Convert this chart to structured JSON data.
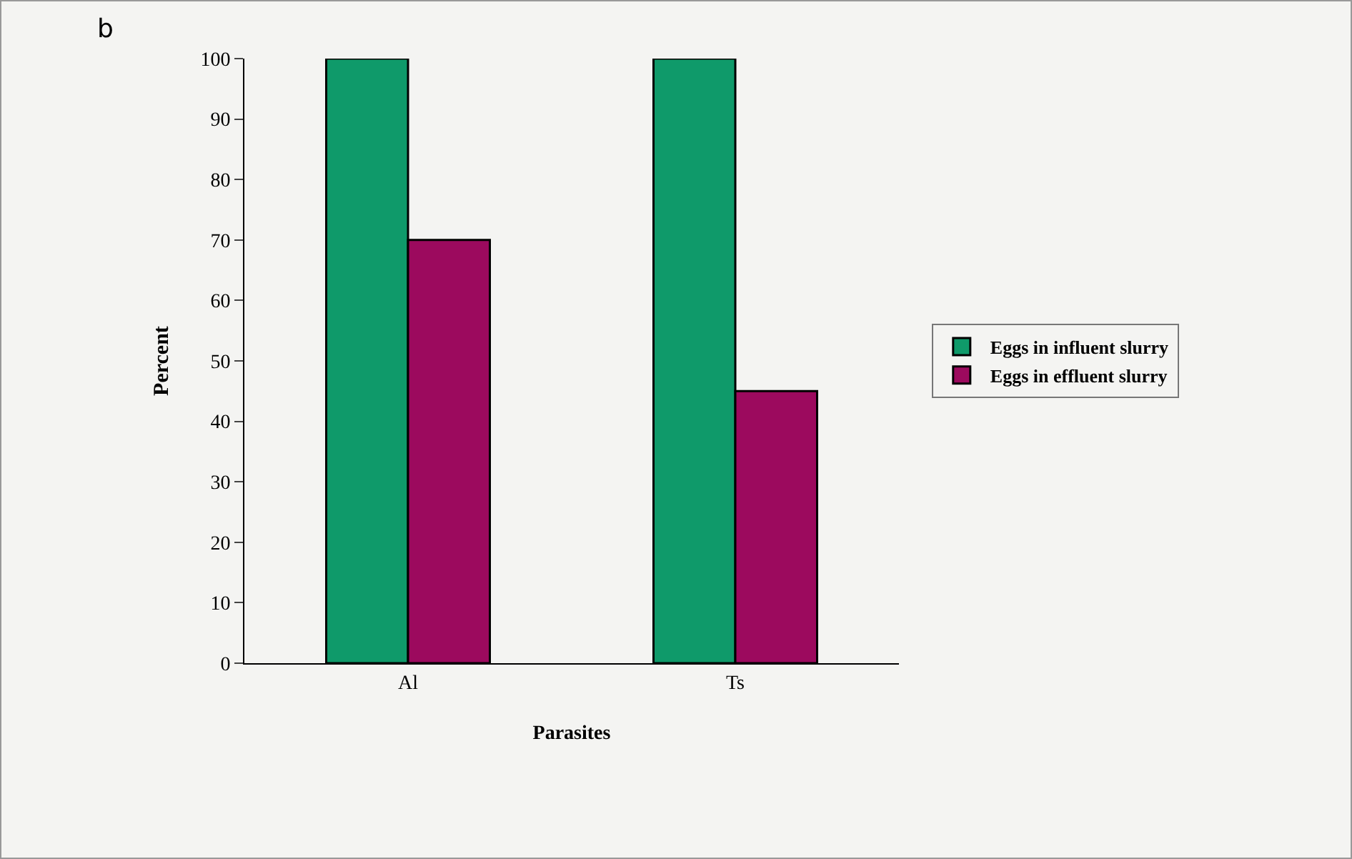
{
  "chart_data": {
    "type": "bar",
    "annotations": [
      "b"
    ],
    "xlabel": "Parasites",
    "ylabel": "Percent",
    "categories": [
      "Al",
      "Ts"
    ],
    "series": [
      {
        "name": "Eggs in influent slurry",
        "color": "#0f9a6a",
        "values": [
          100,
          100
        ]
      },
      {
        "name": "Eggs in effluent slurry",
        "color": "#9c0a5e",
        "values": [
          70,
          45
        ]
      }
    ],
    "ylim": [
      0,
      100
    ],
    "yticks": [
      0,
      10,
      20,
      30,
      40,
      50,
      60,
      70,
      80,
      90,
      100
    ],
    "grid": false,
    "legend": "right"
  }
}
